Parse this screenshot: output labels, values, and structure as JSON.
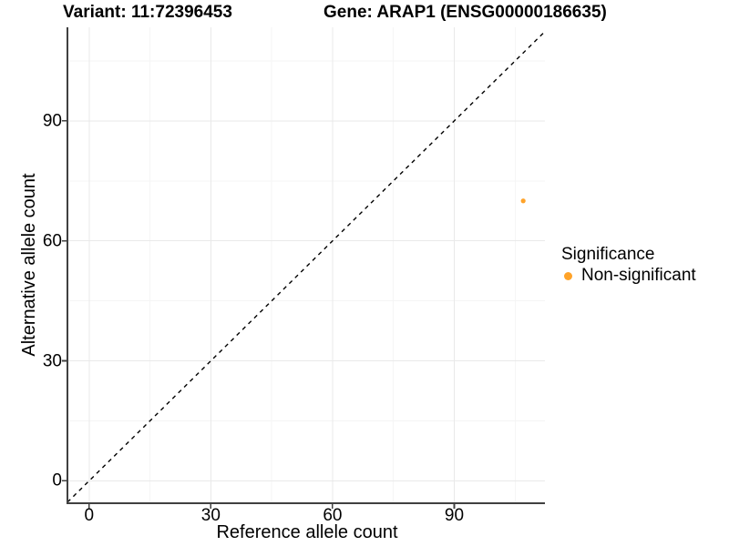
{
  "chart_data": {
    "type": "scatter",
    "title_left": "Variant: 11:72396453",
    "title_right": "Gene: ARAP1 (ENSG00000186635)",
    "xlabel": "Reference allele count",
    "ylabel": "Alternative allele count",
    "x_ticks": [
      0,
      30,
      60,
      90
    ],
    "y_ticks": [
      0,
      30,
      60,
      90
    ],
    "x_minor_gridlines": [
      15,
      45,
      75,
      105
    ],
    "y_minor_gridlines": [
      15,
      45,
      75,
      105
    ],
    "xlim": [
      -5.35,
      112.35
    ],
    "ylim": [
      -5.6,
      113.4
    ],
    "grid": "major-and-minor",
    "legend_position": "right",
    "reference_line": {
      "label": "y = x",
      "style": "dashed",
      "color": "#000000"
    },
    "series": [
      {
        "name": "Non-significant",
        "color": "#FFA329",
        "marker": "circle",
        "points": [
          {
            "x": 107,
            "y": 70
          }
        ]
      }
    ],
    "legend": {
      "title": "Significance",
      "items": [
        {
          "label": "Non-significant",
          "color": "#FFA329",
          "marker": "circle"
        }
      ]
    },
    "style_colors": {
      "axis_line": "#404040",
      "major_grid": "#E9E9E9",
      "minor_grid": "#F5F5F5"
    }
  }
}
